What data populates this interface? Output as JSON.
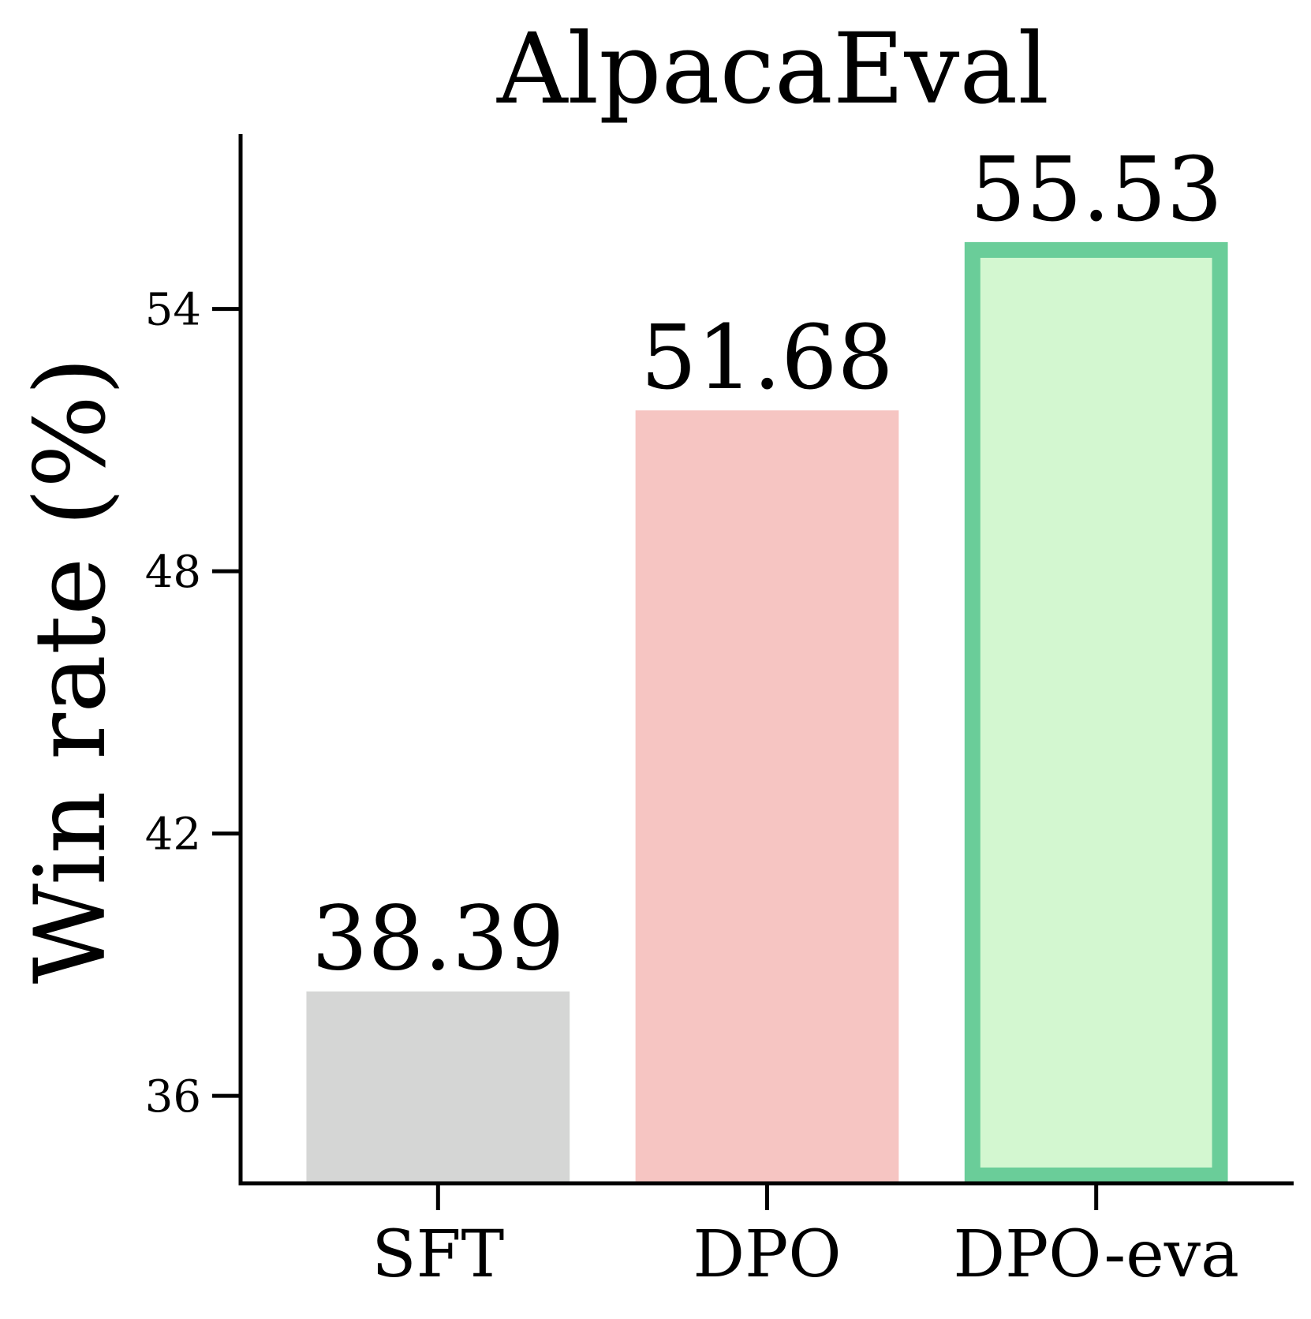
{
  "chart_data": {
    "type": "bar",
    "title": "AlpacaEval",
    "xlabel": "",
    "ylabel": "Win rate (%)",
    "categories": [
      "SFT",
      "DPO",
      "DPO-eva"
    ],
    "values": [
      38.39,
      51.68,
      55.53
    ],
    "value_labels": [
      "38.39",
      "51.68",
      "55.53"
    ],
    "yticks": [
      36,
      42,
      48,
      54
    ],
    "ylim": [
      34,
      58
    ],
    "grid": false,
    "legend": "none",
    "bar_fill_colors": [
      "#d5d6d5",
      "#f6c5c2",
      "#d3f7d0"
    ],
    "bar_edge_colors": [
      "none",
      "none",
      "#6acd99"
    ]
  }
}
